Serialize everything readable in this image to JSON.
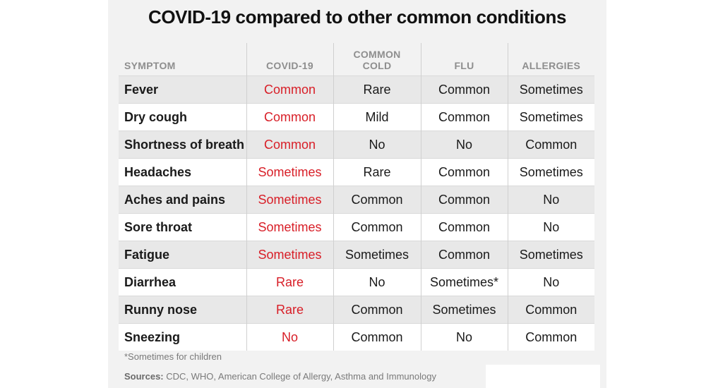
{
  "chart_data": {
    "type": "table",
    "title": "COVID-19 compared to other common conditions",
    "columns": [
      "SYMPTOM",
      "COVID-19",
      "COMMON COLD",
      "FLU",
      "ALLERGIES"
    ],
    "header_lines": [
      [
        "SYMPTOM"
      ],
      [
        "COVID-19"
      ],
      [
        "COMMON",
        "COLD"
      ],
      [
        "FLU"
      ],
      [
        "ALLERGIES"
      ]
    ],
    "rows": [
      [
        "Fever",
        "Common",
        "Rare",
        "Common",
        "Sometimes"
      ],
      [
        "Dry cough",
        "Common",
        "Mild",
        "Common",
        "Sometimes"
      ],
      [
        "Shortness of breath",
        "Common",
        "No",
        "No",
        "Common"
      ],
      [
        "Headaches",
        "Sometimes",
        "Rare",
        "Common",
        "Sometimes"
      ],
      [
        "Aches and pains",
        "Sometimes",
        "Common",
        "Common",
        "No"
      ],
      [
        "Sore throat",
        "Sometimes",
        "Common",
        "Common",
        "No"
      ],
      [
        "Fatigue",
        "Sometimes",
        "Sometimes",
        "Common",
        "Sometimes"
      ],
      [
        "Diarrhea",
        "Rare",
        "No",
        "Sometimes*",
        "No"
      ],
      [
        "Runny nose",
        "Rare",
        "Common",
        "Sometimes",
        "Common"
      ],
      [
        "Sneezing",
        "No",
        "Common",
        "No",
        "Common"
      ]
    ],
    "footnote": "*Sometimes for children",
    "sources_label": "Sources:",
    "sources_text": " CDC, WHO,  American College of Allergy, Asthma and Immunology"
  },
  "colors": {
    "panel_background": "#f2f2f2",
    "covid_text": "#d81e27",
    "header_text": "#8e8e8e",
    "body_text": "#1a1a1a",
    "row_band": "#e8e8e8"
  }
}
